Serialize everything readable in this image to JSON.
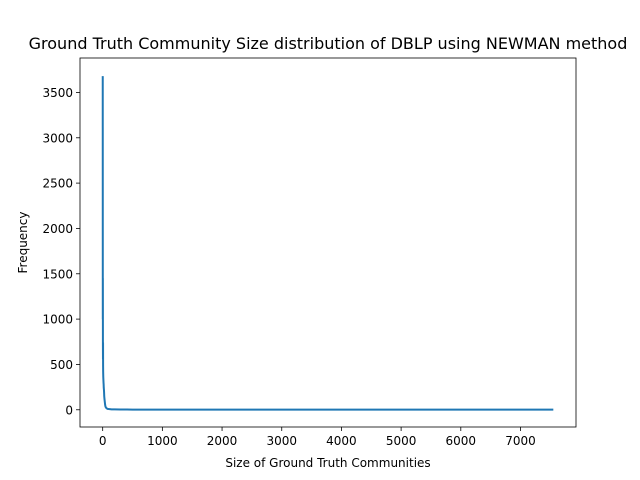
{
  "chart_data": {
    "type": "line",
    "title": "Ground Truth Community Size distribution of DBLP using NEWMAN method",
    "xlabel": "Size of Ground Truth Communities",
    "ylabel": "Frequency",
    "xlim": [
      -380,
      7930
    ],
    "ylim": [
      -190,
      3880
    ],
    "xticks": [
      0,
      1000,
      2000,
      3000,
      4000,
      5000,
      6000,
      7000
    ],
    "yticks": [
      0,
      500,
      1000,
      1500,
      2000,
      2500,
      3000,
      3500
    ],
    "grid": false,
    "legend": "none",
    "series": [
      {
        "color": "#1f77b4",
        "x": [
          1,
          2,
          3,
          4,
          5,
          6,
          7,
          8,
          9,
          10,
          12,
          14,
          16,
          18,
          20,
          23,
          26,
          30,
          35,
          40,
          45,
          50,
          60,
          70,
          80,
          100,
          150,
          200,
          300,
          500,
          1000,
          2000,
          3000,
          4000,
          5000,
          6000,
          7000,
          7550
        ],
        "y": [
          3680,
          1000,
          1450,
          700,
          560,
          740,
          480,
          420,
          390,
          360,
          330,
          300,
          280,
          240,
          230,
          200,
          150,
          120,
          90,
          60,
          40,
          30,
          20,
          15,
          10,
          8,
          5,
          4,
          3,
          2,
          2,
          1,
          1,
          1,
          1,
          1,
          1,
          1
        ]
      }
    ]
  }
}
